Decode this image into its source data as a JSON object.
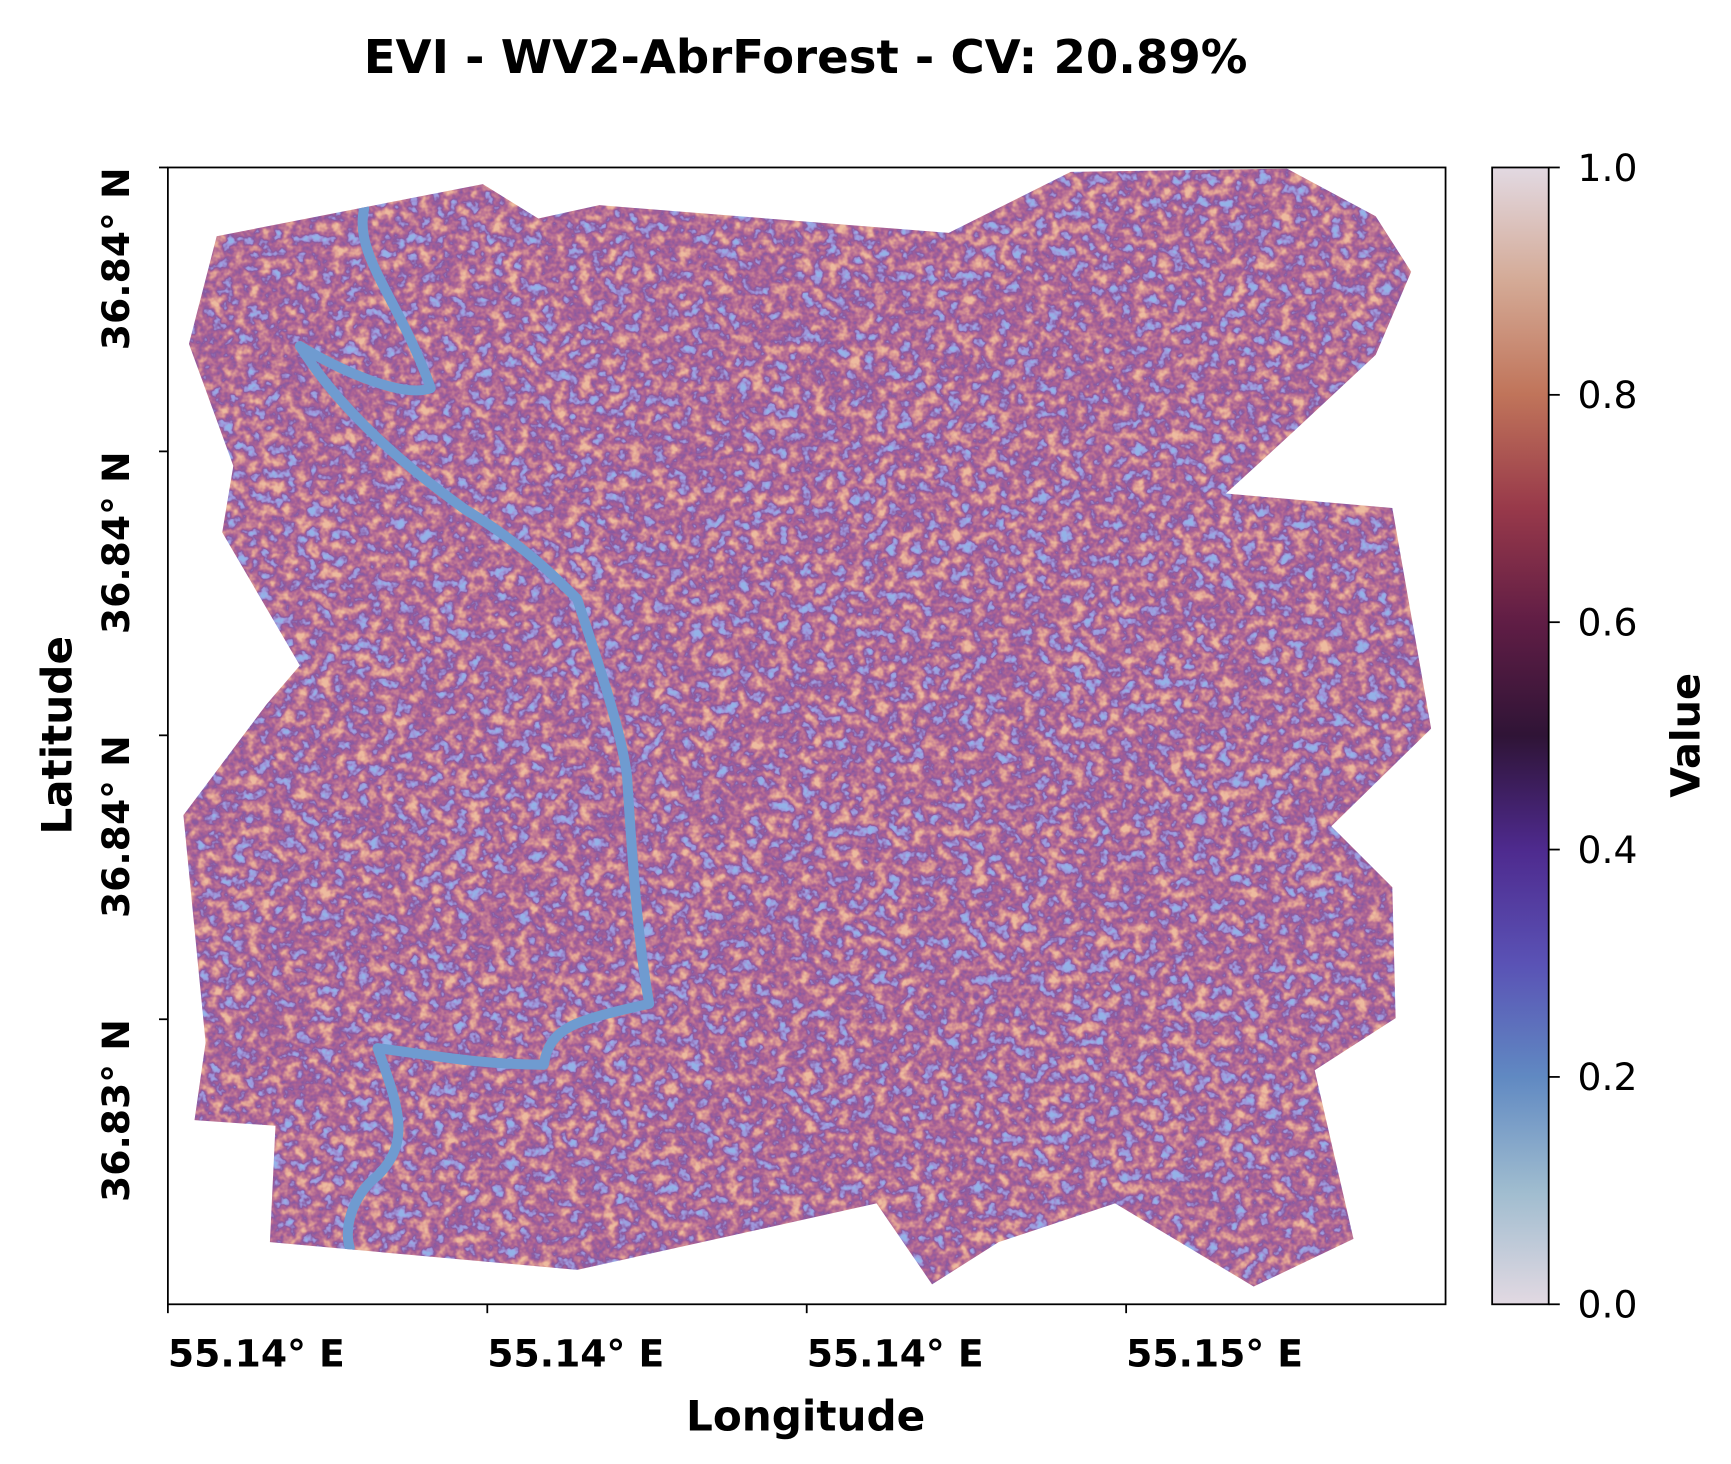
{
  "map": {
    "title": "EVI - WV2-AbrForest - CV: 20.89%",
    "x_label": "Longitude",
    "y_label": "Latitude",
    "x_tick_labels": [
      "55.14° E",
      "55.14° E",
      "55.14° E",
      "55.15° E"
    ],
    "y_tick_labels": [
      "36.84° N",
      "36.84° N",
      "36.84° N",
      "36.83° N"
    ]
  },
  "colorbar": {
    "label": "Value",
    "lim": [
      0,
      1
    ],
    "ticks": [
      {
        "value": 0,
        "label": "0.0"
      },
      {
        "value": 0.2,
        "label": "0.2"
      },
      {
        "value": 0.4,
        "label": "0.4"
      },
      {
        "value": 0.6,
        "label": "0.6"
      },
      {
        "value": 0.8,
        "label": "0.8"
      },
      {
        "value": 1,
        "label": "1.0"
      }
    ]
  }
}
